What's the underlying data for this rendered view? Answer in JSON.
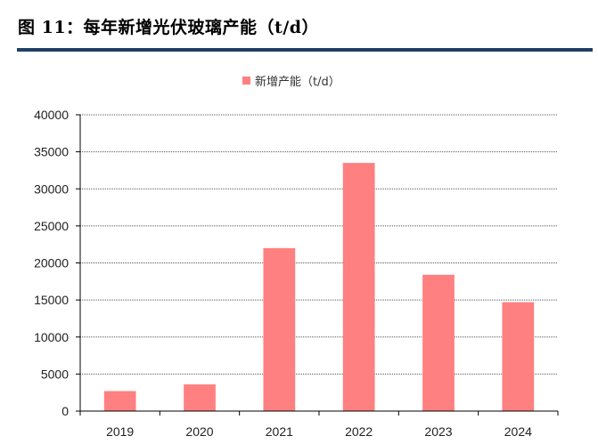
{
  "figure": {
    "title": "图 11：每年新增光伏玻璃产能（t/d）"
  },
  "colors": {
    "bar": "#ff8080",
    "grid": "#555555",
    "title_rule": "#1f3f66"
  },
  "chart_data": {
    "type": "bar",
    "categories": [
      "2019",
      "2020",
      "2021",
      "2022",
      "2023",
      "2024"
    ],
    "series": [
      {
        "name": "新增产能（t/d）",
        "values": [
          2700,
          3600,
          22000,
          33500,
          18400,
          14700
        ]
      }
    ],
    "ylim": [
      0,
      40000
    ],
    "yticks": [
      0,
      5000,
      10000,
      15000,
      20000,
      25000,
      30000,
      35000,
      40000
    ],
    "grid": true,
    "legend_position": "top-center"
  }
}
